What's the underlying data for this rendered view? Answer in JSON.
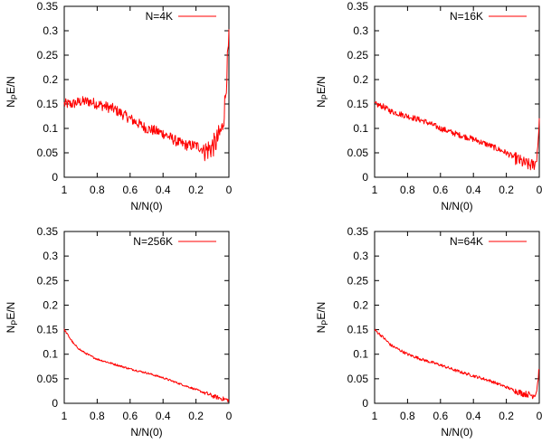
{
  "chart_data": [
    {
      "type": "line",
      "legend": "N=4K",
      "xlabel": "N/N(0)",
      "ylabel": {
        "base": "N",
        "sub": "P",
        "rest": "E/N"
      },
      "xlim": [
        1,
        0
      ],
      "ylim": [
        0,
        0.35
      ],
      "xticks": [
        1,
        0.8,
        0.6,
        0.4,
        0.2,
        0
      ],
      "yticks": [
        0,
        0.05,
        0.1,
        0.15,
        0.2,
        0.25,
        0.3,
        0.35
      ],
      "series": [
        {
          "color": "#ff0000",
          "x": [
            1.0,
            0.95,
            0.9,
            0.85,
            0.8,
            0.75,
            0.7,
            0.65,
            0.6,
            0.55,
            0.5,
            0.45,
            0.4,
            0.35,
            0.3,
            0.25,
            0.2,
            0.17,
            0.14,
            0.11,
            0.08,
            0.06,
            0.04,
            0.03,
            0.02,
            0.01,
            0.0
          ],
          "y": [
            0.15,
            0.15,
            0.155,
            0.155,
            0.15,
            0.145,
            0.14,
            0.13,
            0.12,
            0.11,
            0.1,
            0.095,
            0.09,
            0.08,
            0.07,
            0.065,
            0.065,
            0.06,
            0.055,
            0.06,
            0.07,
            0.085,
            0.1,
            0.13,
            0.17,
            0.23,
            0.28
          ],
          "noise": 0.011
        }
      ]
    },
    {
      "type": "line",
      "legend": "N=16K",
      "xlabel": "N/N(0)",
      "ylabel": {
        "base": "N",
        "sub": "P",
        "rest": "E/N"
      },
      "xlim": [
        1,
        0
      ],
      "ylim": [
        0,
        0.35
      ],
      "xticks": [
        1,
        0.8,
        0.6,
        0.4,
        0.2,
        0
      ],
      "yticks": [
        0,
        0.05,
        0.1,
        0.15,
        0.2,
        0.25,
        0.3,
        0.35
      ],
      "series": [
        {
          "color": "#ff0000",
          "x": [
            1.0,
            0.95,
            0.9,
            0.8,
            0.7,
            0.6,
            0.5,
            0.4,
            0.3,
            0.2,
            0.15,
            0.1,
            0.06,
            0.04,
            0.02,
            0.01,
            0.0
          ],
          "y": [
            0.15,
            0.145,
            0.135,
            0.125,
            0.115,
            0.1,
            0.088,
            0.078,
            0.065,
            0.05,
            0.04,
            0.03,
            0.025,
            0.025,
            0.03,
            0.06,
            0.12
          ],
          "noise": 0.006
        }
      ]
    },
    {
      "type": "line",
      "legend": "N=256K",
      "xlabel": "N/N(0)",
      "ylabel": {
        "base": "N",
        "sub": "P",
        "rest": "E/N"
      },
      "xlim": [
        1,
        0
      ],
      "ylim": [
        0,
        0.35
      ],
      "xticks": [
        1,
        0.8,
        0.6,
        0.4,
        0.2,
        0
      ],
      "yticks": [
        0,
        0.05,
        0.1,
        0.15,
        0.2,
        0.25,
        0.3,
        0.35
      ],
      "series": [
        {
          "color": "#ff0000",
          "x": [
            1.0,
            0.97,
            0.94,
            0.9,
            0.85,
            0.8,
            0.7,
            0.6,
            0.5,
            0.4,
            0.3,
            0.2,
            0.1,
            0.05,
            0.02,
            0.0
          ],
          "y": [
            0.15,
            0.135,
            0.12,
            0.108,
            0.098,
            0.09,
            0.08,
            0.07,
            0.062,
            0.052,
            0.04,
            0.028,
            0.015,
            0.01,
            0.008,
            0.006
          ],
          "noise": 0.002
        }
      ]
    },
    {
      "type": "line",
      "legend": "N=64K",
      "xlabel": "N/N(0)",
      "ylabel": {
        "base": "N",
        "sub": "P",
        "rest": "E/N"
      },
      "xlim": [
        1,
        0
      ],
      "ylim": [
        0,
        0.35
      ],
      "xticks": [
        1,
        0.8,
        0.6,
        0.4,
        0.2,
        0
      ],
      "yticks": [
        0,
        0.05,
        0.1,
        0.15,
        0.2,
        0.25,
        0.3,
        0.35
      ],
      "series": [
        {
          "color": "#ff0000",
          "x": [
            1.0,
            0.95,
            0.9,
            0.8,
            0.7,
            0.6,
            0.5,
            0.4,
            0.3,
            0.2,
            0.15,
            0.1,
            0.06,
            0.04,
            0.02,
            0.01,
            0.0
          ],
          "y": [
            0.15,
            0.135,
            0.118,
            0.1,
            0.088,
            0.078,
            0.066,
            0.056,
            0.046,
            0.033,
            0.026,
            0.02,
            0.018,
            0.016,
            0.02,
            0.04,
            0.075
          ],
          "noise": 0.003
        }
      ]
    }
  ]
}
